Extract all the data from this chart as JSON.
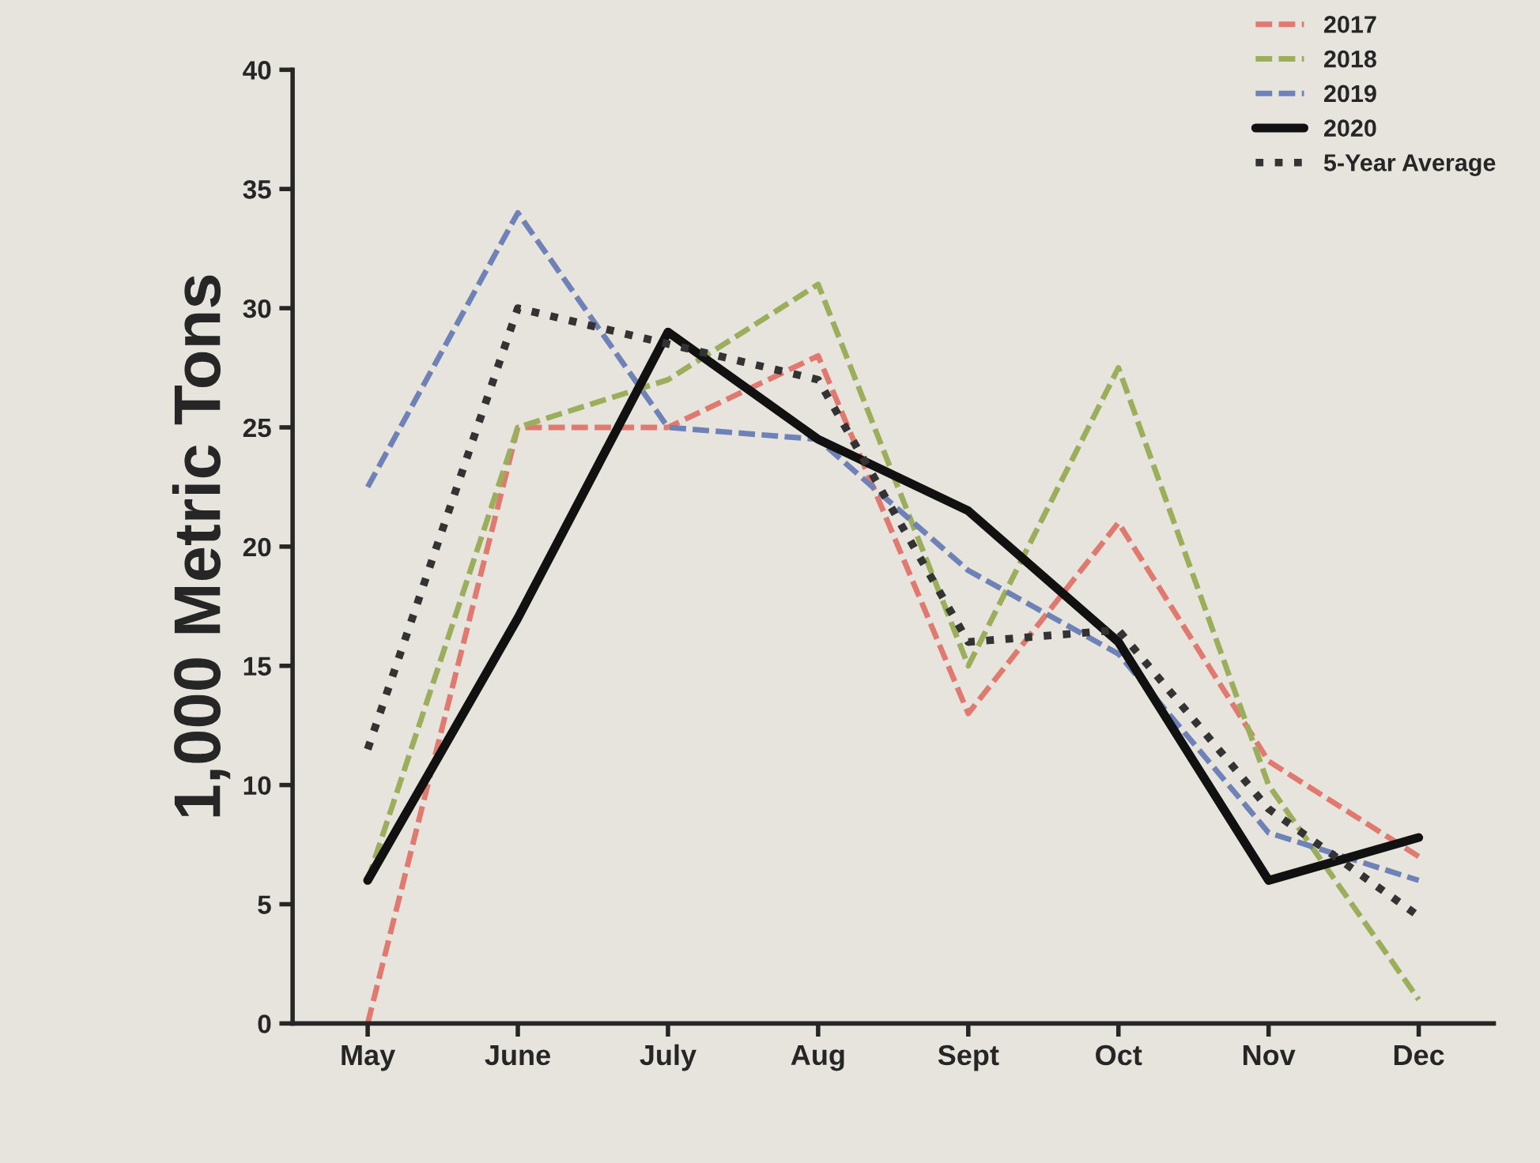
{
  "chart_data": {
    "type": "line",
    "ylabel": "1,000 Metric Tons",
    "categories": [
      "May",
      "June",
      "July",
      "Aug",
      "Sept",
      "Oct",
      "Nov",
      "Dec"
    ],
    "ylim": [
      0,
      40
    ],
    "yticks": [
      0,
      5,
      10,
      15,
      20,
      25,
      30,
      35,
      40
    ],
    "grid": false,
    "legend": "top right",
    "marker": "none",
    "series": [
      {
        "name": "2017",
        "color": "#e07a70",
        "line_style": "dashed",
        "values": [
          0,
          25,
          25,
          28,
          13,
          21,
          11,
          7
        ]
      },
      {
        "name": "2018",
        "color": "#9aae5c",
        "line_style": "dashed",
        "values": [
          6,
          25,
          27,
          31,
          15,
          27.5,
          10,
          1
        ]
      },
      {
        "name": "2019",
        "color": "#6f82b8",
        "line_style": "dashed",
        "values": [
          22.5,
          34,
          25,
          24.5,
          19,
          15.5,
          8,
          6
        ]
      },
      {
        "name": "2020",
        "color": "#111111",
        "line_style": "solid",
        "values": [
          6,
          17,
          29,
          24.5,
          21.5,
          16,
          6,
          7.8
        ]
      },
      {
        "name": "5-Year Average",
        "color": "#333333",
        "line_style": "dotted",
        "values": [
          11.5,
          30,
          28.5,
          27,
          16,
          16.5,
          9,
          4.5
        ]
      }
    ]
  }
}
